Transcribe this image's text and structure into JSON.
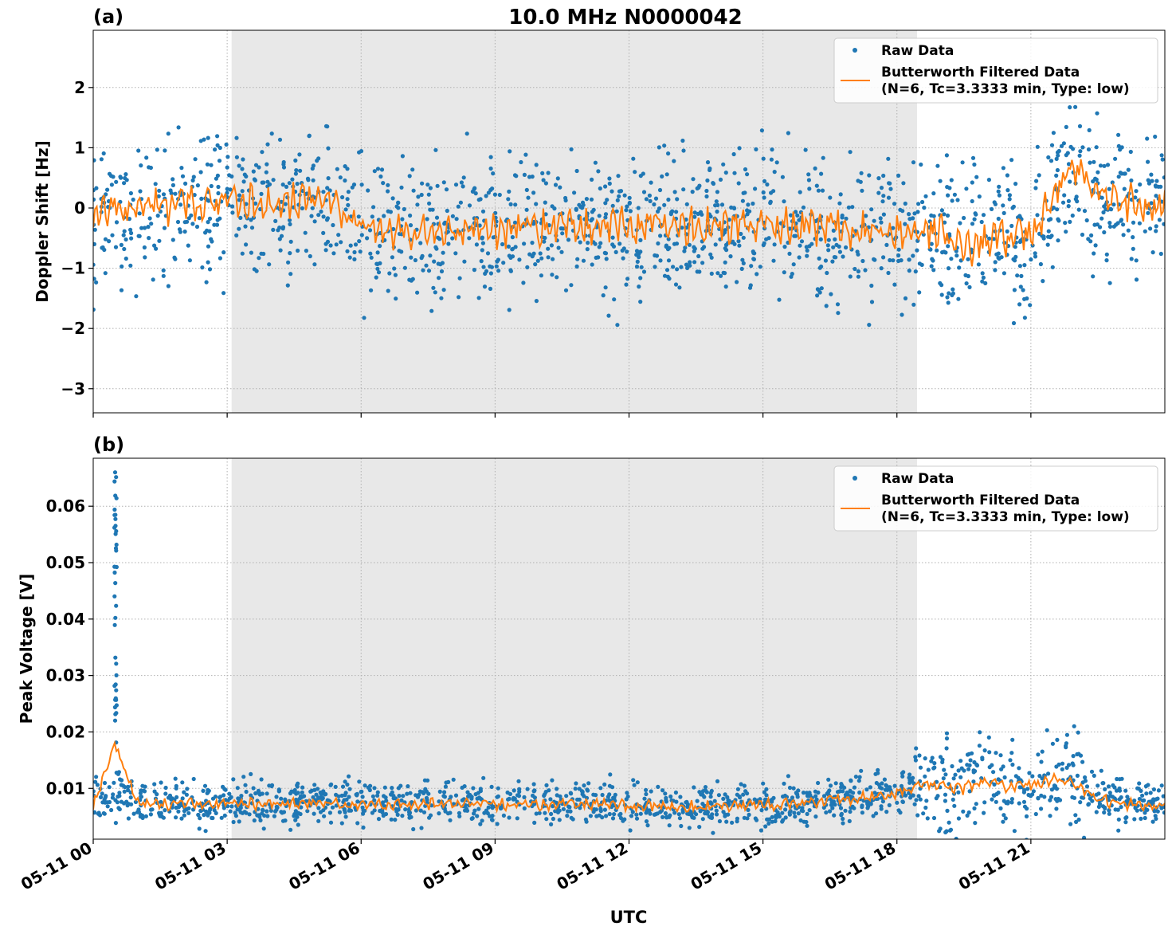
{
  "figure": {
    "title": "10.0 MHz N0000042",
    "xlabel": "UTC",
    "x_tick_labels": [
      "05-11 00",
      "05-11 03",
      "05-11 06",
      "05-11 09",
      "05-11 12",
      "05-11 15",
      "05-11 18",
      "05-11 21"
    ],
    "shaded_interval_hours": [
      3.1,
      18.45
    ],
    "colors": {
      "raw": "#1f77b4",
      "filtered": "#ff7f0e",
      "shade": "#e8e8e8",
      "grid": "#b0b0b0"
    }
  },
  "chart_data": [
    {
      "type": "line",
      "panel_label": "(a)",
      "ylabel": "Doppler Shift [Hz]",
      "xlim_hours": [
        0,
        24
      ],
      "ylim": [
        -3.4,
        2.95
      ],
      "y_ticks": [
        -3,
        -2,
        -1,
        0,
        1,
        2
      ],
      "y_tick_labels": [
        "−3",
        "−2",
        "−1",
        "0",
        "1",
        "2"
      ],
      "grid": true,
      "legend_position": "top-right",
      "legend": [
        "Raw Data",
        "Butterworth Filtered Data",
        "(N=6, Tc=3.3333 min, Type: low)"
      ],
      "series": [
        {
          "name": "Raw Data",
          "kind": "scatter",
          "x": [
            0,
            1,
            2,
            3,
            4,
            5,
            5.5,
            6,
            6.5,
            7,
            8,
            9,
            10,
            11,
            12,
            13,
            14,
            15,
            16,
            17,
            18,
            18.5,
            19,
            19.5,
            20,
            20.5,
            21,
            21.5,
            22,
            22.5,
            23,
            24
          ],
          "y": [
            -0.1,
            -0.05,
            0.05,
            0.1,
            0.05,
            0.15,
            -0.05,
            -0.2,
            -0.3,
            -0.45,
            -0.4,
            -0.35,
            -0.35,
            -0.3,
            -0.3,
            -0.3,
            -0.3,
            -0.3,
            -0.35,
            -0.35,
            -0.45,
            -0.4,
            -0.4,
            -0.6,
            -0.45,
            -0.5,
            -0.55,
            0.15,
            0.5,
            0.2,
            0.1,
            0.1
          ]
        },
        {
          "name": "Butterworth Filtered Data",
          "kind": "line",
          "x": [
            0,
            1,
            2,
            3,
            4,
            5,
            5.5,
            6,
            6.5,
            7,
            8,
            9,
            10,
            11,
            12,
            13,
            14,
            15,
            16,
            17,
            18,
            18.5,
            19,
            19.5,
            20,
            20.5,
            21,
            21.5,
            22,
            22.5,
            23,
            24
          ],
          "y": [
            -0.1,
            0.0,
            0.05,
            0.1,
            0.05,
            0.15,
            -0.05,
            -0.25,
            -0.35,
            -0.4,
            -0.4,
            -0.35,
            -0.3,
            -0.3,
            -0.3,
            -0.3,
            -0.3,
            -0.3,
            -0.3,
            -0.35,
            -0.4,
            -0.4,
            -0.35,
            -0.75,
            -0.5,
            -0.5,
            -0.5,
            0.2,
            0.7,
            0.25,
            0.1,
            0.05
          ]
        }
      ]
    },
    {
      "type": "line",
      "panel_label": "(b)",
      "ylabel": "Peak Voltage [V]",
      "xlim_hours": [
        0,
        24
      ],
      "ylim": [
        0.001,
        0.0685
      ],
      "y_ticks": [
        0.01,
        0.02,
        0.03,
        0.04,
        0.05,
        0.06
      ],
      "y_tick_labels": [
        "0.01",
        "0.02",
        "0.03",
        "0.04",
        "0.05",
        "0.06"
      ],
      "grid": true,
      "legend_position": "top-right",
      "legend": [
        "Raw Data",
        "Butterworth Filtered Data",
        "(N=6, Tc=3.3333 min, Type: low)"
      ],
      "series": [
        {
          "name": "Raw Data",
          "kind": "scatter",
          "x": [
            0,
            0.5,
            1,
            2,
            3,
            4,
            5,
            6,
            7,
            8,
            9,
            10,
            11,
            12,
            13,
            14,
            15,
            16,
            17,
            18,
            18.5,
            19,
            19.5,
            20,
            20.5,
            21,
            21.5,
            22,
            22.5,
            23,
            24
          ],
          "y": [
            0.0075,
            0.0085,
            0.0075,
            0.0075,
            0.0075,
            0.0075,
            0.0075,
            0.0075,
            0.0075,
            0.0075,
            0.0075,
            0.0075,
            0.0075,
            0.0072,
            0.007,
            0.007,
            0.0072,
            0.0078,
            0.0085,
            0.0095,
            0.0115,
            0.011,
            0.0105,
            0.0115,
            0.0105,
            0.011,
            0.012,
            0.0115,
            0.0085,
            0.0075,
            0.007
          ]
        },
        {
          "name": "Butterworth Filtered Data",
          "kind": "line",
          "x": [
            0,
            0.5,
            1,
            2,
            3,
            4,
            5,
            6,
            7,
            8,
            9,
            10,
            11,
            12,
            13,
            14,
            15,
            16,
            17,
            18,
            18.5,
            19,
            19.5,
            20,
            20.5,
            21,
            21.5,
            22,
            22.5,
            23,
            24
          ],
          "y": [
            0.007,
            0.0178,
            0.0072,
            0.0072,
            0.0072,
            0.0072,
            0.0072,
            0.0072,
            0.0072,
            0.0072,
            0.0072,
            0.0072,
            0.0072,
            0.007,
            0.0068,
            0.0068,
            0.007,
            0.0075,
            0.0082,
            0.009,
            0.011,
            0.0105,
            0.01,
            0.0115,
            0.01,
            0.0105,
            0.0115,
            0.011,
            0.008,
            0.0072,
            0.0068
          ]
        }
      ]
    }
  ]
}
